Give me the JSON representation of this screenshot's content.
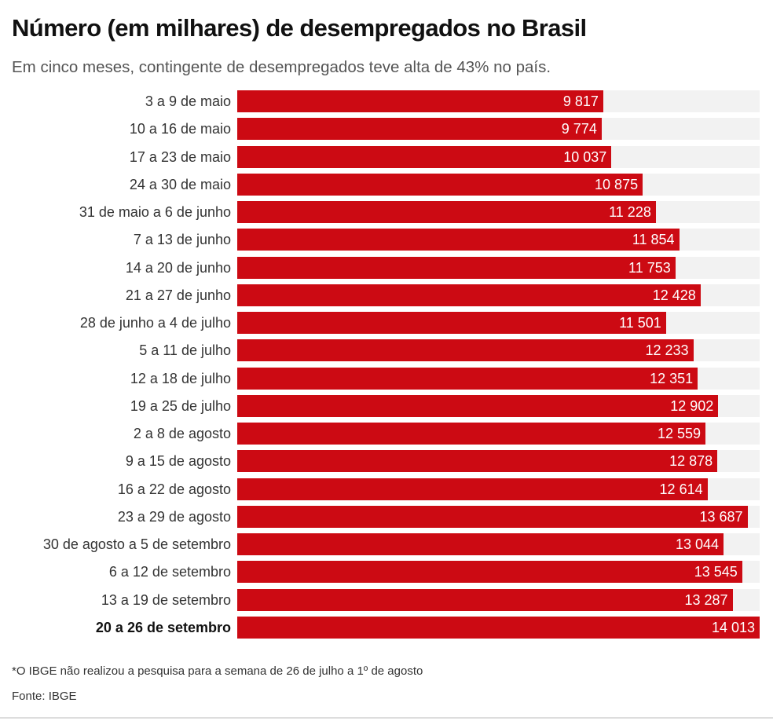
{
  "chart_data": {
    "type": "bar",
    "orientation": "horizontal",
    "title": "Número (em milhares) de desempregados no Brasil",
    "subtitle": "Em cinco meses, contingente de desempregados teve alta de 43% no país.",
    "categories": [
      "3 a 9 de maio",
      "10 a 16 de maio",
      "17 a 23 de maio",
      "24 a 30 de maio",
      "31 de maio a 6 de junho",
      "7 a 13 de junho",
      "14 a 20 de junho",
      "21 a 27 de junho",
      "28 de junho a 4 de julho",
      "5 a 11 de julho",
      "12 a 18 de julho",
      "19 a 25 de julho",
      "2 a 8 de agosto",
      "9 a 15 de agosto",
      "16 a 22 de agosto",
      "23 a 29 de agosto",
      "30 de agosto a 5 de setembro",
      "6 a 12 de setembro",
      "13 a 19 de setembro",
      "20 a 26 de setembro"
    ],
    "values": [
      9817,
      9774,
      10037,
      10875,
      11228,
      11854,
      11753,
      12428,
      11501,
      12233,
      12351,
      12902,
      12559,
      12878,
      12614,
      13687,
      13044,
      13545,
      13287,
      14013
    ],
    "value_labels": [
      "9 817",
      "9 774",
      "10 037",
      "10 875",
      "11 228",
      "11 854",
      "11 753",
      "12 428",
      "11 501",
      "12 233",
      "12 351",
      "12 902",
      "12 559",
      "12 878",
      "12 614",
      "13 687",
      "13 044",
      "13 545",
      "13 287",
      "14 013"
    ],
    "highlighted_category": "20 a 26 de setembro",
    "xlim": [
      0,
      14013
    ],
    "grid": false,
    "legend": "none",
    "bar_color": "#cc0a13",
    "track_color": "#f2f2f2",
    "note": "*O IBGE não realizou a pesquisa para a semana de 26 de julho a 1º de agosto",
    "source": "Fonte: IBGE"
  }
}
